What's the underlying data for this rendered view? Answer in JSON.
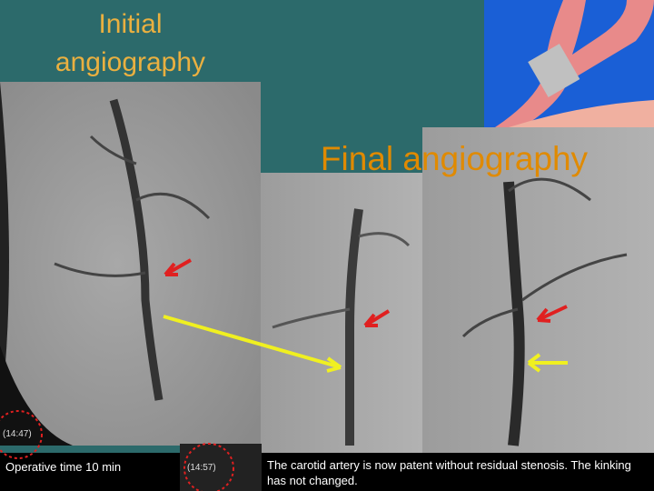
{
  "header": {
    "title_initial_line1": "Initial",
    "title_initial_line2": "angiography",
    "title_final": "Final angiography"
  },
  "timestamps": {
    "initial": "(14:47)",
    "final": "(14:57)"
  },
  "footer": {
    "operative_time": "Operative time 10 min",
    "caption": "The carotid artery is now patent without residual stenosis. The kinking has not changed."
  }
}
